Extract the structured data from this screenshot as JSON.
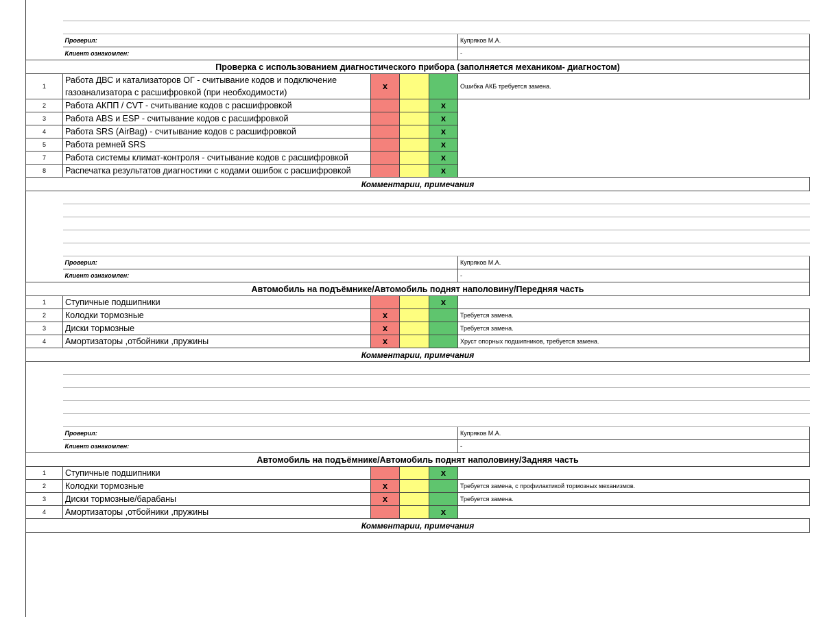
{
  "status_colors": {
    "red": "#f4817b",
    "yellow": "#fefe7f",
    "green": "#5fc56e"
  },
  "top_signoff": {
    "checked_label": "Проверил:",
    "checked_by": "Купряков М.А.",
    "client_label": "Клиент ознакомлен:",
    "client_value": "-"
  },
  "sections": [
    {
      "title": "Проверка с использованием диагностического прибора (заполняется механиком- диагностом)",
      "rows": [
        {
          "num": "1",
          "text": "Работа ДВС и катализаторов ОГ - считывание кодов и подключение газоанализатора с расшифровкой (при необходимости)",
          "status": "red",
          "mark": "x",
          "comment": "Ошибка АКБ требуется замена."
        },
        {
          "num": "2",
          "text": "Работа АКПП / CVT - считывание кодов с расшифровкой",
          "status": "green",
          "mark": "x"
        },
        {
          "num": "3",
          "text": "Работа ABS и ESP - считывание кодов с расшифровкой",
          "status": "green",
          "mark": "x"
        },
        {
          "num": "4",
          "text": "Работа SRS (AirBag) - считывание кодов с расшифровкой",
          "status": "green",
          "mark": "x"
        },
        {
          "num": "5",
          "text": "Работа ремней SRS",
          "status": "green",
          "mark": "x"
        },
        {
          "num": "7",
          "text": "Работа системы климат-контроля - считывание кодов с расшифровкой",
          "status": "green",
          "mark": "x"
        },
        {
          "num": "8",
          "text": "Распечатка результатов диагностики с кодами ошибок с расшифровкой",
          "status": "green",
          "mark": "x"
        }
      ],
      "comments_title": "Комментарии, примечания",
      "signoff": {
        "checked_label": "Проверил:",
        "checked_by": "Купряков М.А.",
        "client_label": "Клиент ознакомлен:",
        "client_value": "-"
      }
    },
    {
      "title": "Автомобиль на подъёмнике/Автомобиль поднят наполовину/Передняя часть",
      "rows": [
        {
          "num": "1",
          "text": "Ступичные подшипники",
          "status": "green",
          "mark": "x"
        },
        {
          "num": "2",
          "text": "Колодки тормозные",
          "status": "red",
          "mark": "x",
          "comment": "Требуется замена."
        },
        {
          "num": "3",
          "text": "Диски тормозные",
          "status": "red",
          "mark": "x",
          "comment": "Требуется замена."
        },
        {
          "num": "4",
          "text": "Амортизаторы ,отбойники ,пружины",
          "status": "red",
          "mark": "x",
          "comment": "Хруст опорных подшипников, требуется замена."
        }
      ],
      "comments_title": "Комментарии, примечания",
      "signoff": {
        "checked_label": "Проверил:",
        "checked_by": "Купряков М.А.",
        "client_label": "Клиент ознакомлен:",
        "client_value": "-"
      }
    },
    {
      "title": "Автомобиль на подъёмнике/Автомобиль поднят наполовину/Задняя часть",
      "rows": [
        {
          "num": "1",
          "text": "Ступичные подшипники",
          "status": "green",
          "mark": "x"
        },
        {
          "num": "2",
          "text": "Колодки тормозные",
          "status": "red",
          "mark": "x",
          "comment": "Требуется замена, с профилактикой тормозных механизмов."
        },
        {
          "num": "3",
          "text": "Диски тормозные/барабаны",
          "status": "red",
          "mark": "x",
          "comment": "Требуется замена."
        },
        {
          "num": "4",
          "text": "Амортизаторы ,отбойники ,пружины",
          "status": "green",
          "mark": "x"
        }
      ],
      "comments_title": "Комментарии, примечания"
    }
  ]
}
